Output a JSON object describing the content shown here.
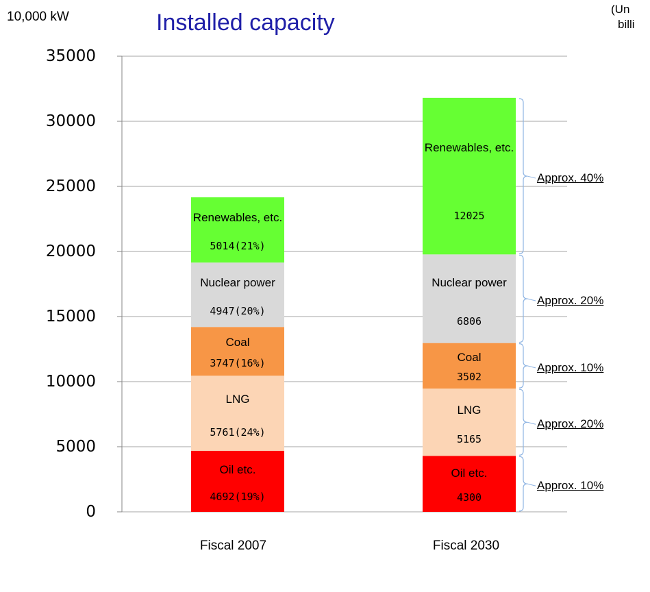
{
  "chart_data": {
    "type": "stacked_bar",
    "title": "Installed capacity",
    "y_axis_label": "10,000 kW",
    "note_lines": [
      "(Un",
      "billi"
    ],
    "categories": [
      "Fiscal 2007",
      "Fiscal 2030"
    ],
    "series": [
      {
        "name": "Oil etc.",
        "color": "#ff0000",
        "values": [
          4692,
          4300
        ],
        "value_labels": [
          "4692(19%)",
          "4300"
        ]
      },
      {
        "name": "LNG",
        "color": "#fcd5b5",
        "values": [
          5761,
          5165
        ],
        "value_labels": [
          "5761(24%)",
          "5165"
        ]
      },
      {
        "name": "Coal",
        "color": "#f79646",
        "values": [
          3747,
          3502
        ],
        "value_labels": [
          "3747(16%)",
          "3502"
        ]
      },
      {
        "name": "Nuclear power",
        "color": "#d9d9d9",
        "values": [
          4947,
          6806
        ],
        "value_labels": [
          "4947(20%)",
          "6806"
        ]
      },
      {
        "name": "Renewables, etc.",
        "color": "#66ff33",
        "values": [
          5014,
          12025
        ],
        "value_labels": [
          "5014(21%)",
          "12025"
        ]
      }
    ],
    "annotations": [
      "Approx. 10%",
      "Approx. 20%",
      "Approx. 10%",
      "Approx. 20%",
      "Approx. 40%"
    ],
    "ylim": [
      0,
      35000
    ],
    "yticks": [
      0,
      5000,
      10000,
      15000,
      20000,
      25000,
      30000,
      35000
    ],
    "grid": true
  }
}
